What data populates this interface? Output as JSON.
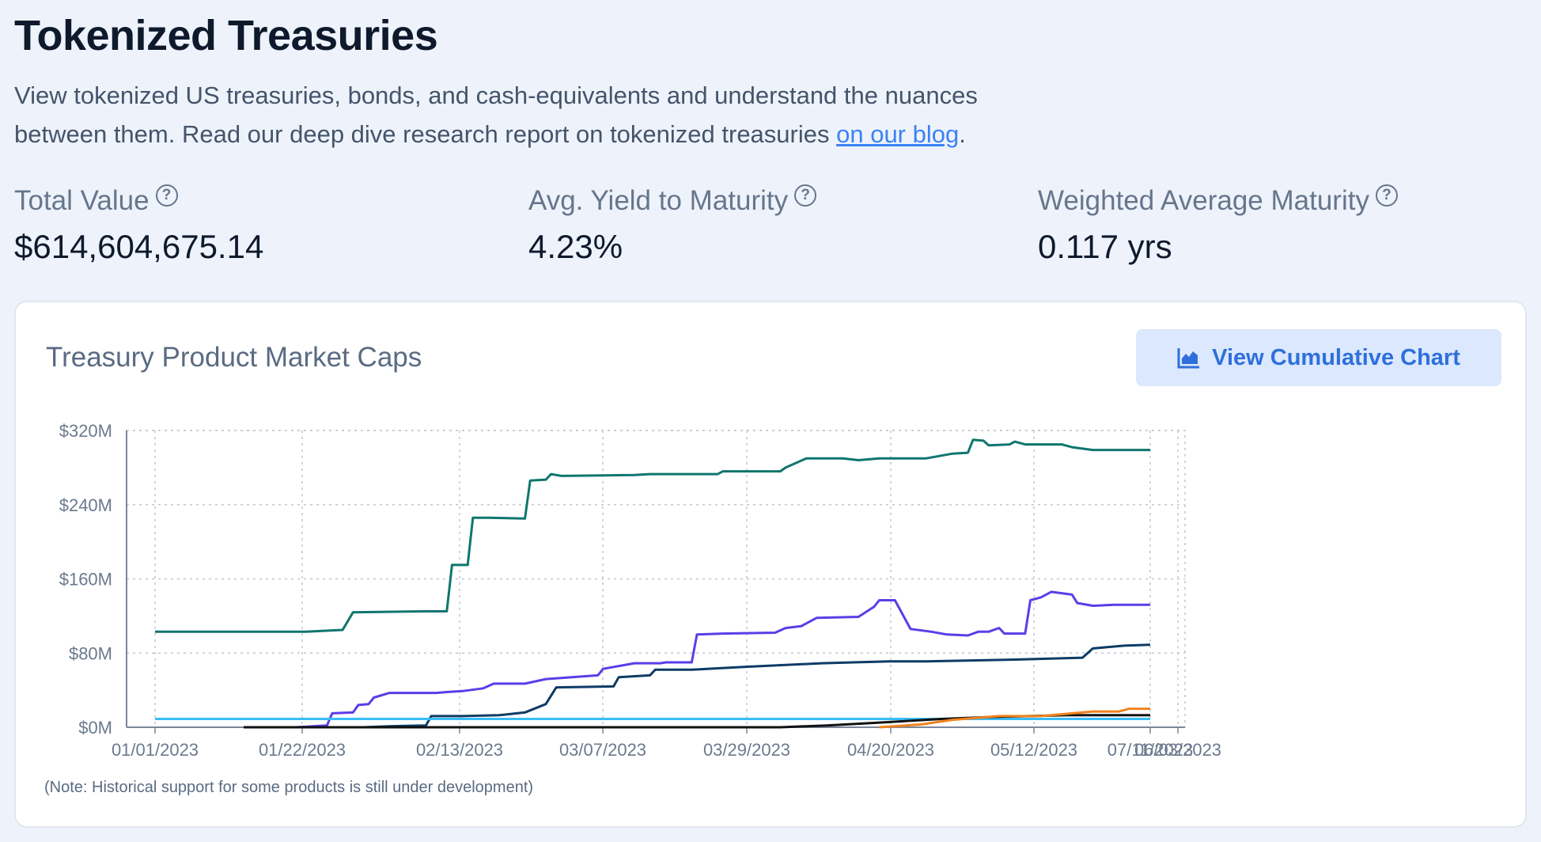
{
  "page": {
    "title": "Tokenized Treasuries",
    "intro_text": "View tokenized US treasuries, bonds, and cash-equivalents and understand the nuances between them. Read our deep dive research report on tokenized treasuries ",
    "intro_link": "on our blog",
    "intro_end": "."
  },
  "stats": [
    {
      "label": "Total Value",
      "value": "$614,604,675.14"
    },
    {
      "label": "Avg. Yield to Maturity",
      "value": "4.23%"
    },
    {
      "label": "Weighted Average Maturity",
      "value": "0.117 yrs"
    }
  ],
  "icons": {
    "help": "question-circle-icon",
    "chart": "area-chart-icon"
  },
  "card": {
    "title": "Treasury Product Market Caps",
    "button_label": "View Cumulative Chart",
    "note": "(Note: Historical support for some products is still under development)"
  },
  "colors": {
    "accent": "#2f6fdb",
    "link": "#3b82f6"
  },
  "chart_data": {
    "type": "line",
    "title": "Treasury Product Market Caps",
    "xlabel": "",
    "ylabel": "",
    "grid": true,
    "legend": "none",
    "x_tick_labels": [
      "01/01/2023",
      "01/22/2023",
      "02/13/2023",
      "03/07/2023",
      "03/29/2023",
      "04/20/2023",
      "05/12/2023",
      "06/03/2023",
      "07/11/2023"
    ],
    "y_tick_labels": [
      "$0M",
      "$80M",
      "$160M",
      "$240M",
      "$320M"
    ],
    "ylim": [
      0,
      320
    ],
    "y_unit": "$M",
    "series": [
      {
        "color": "#0f766e",
        "points": [
          [
            "2023-01-01",
            103
          ],
          [
            "2023-01-30",
            103
          ],
          [
            "2023-02-06",
            105
          ],
          [
            "2023-02-08",
            124
          ],
          [
            "2023-02-22",
            125
          ],
          [
            "2023-02-26",
            125
          ],
          [
            "2023-02-27",
            175
          ],
          [
            "2023-03-02",
            175
          ],
          [
            "2023-03-03",
            226
          ],
          [
            "2023-03-06",
            226
          ],
          [
            "2023-03-13",
            225
          ],
          [
            "2023-03-14",
            266
          ],
          [
            "2023-03-17",
            267
          ],
          [
            "2023-03-18",
            273
          ],
          [
            "2023-03-20",
            271
          ],
          [
            "2023-04-03",
            272
          ],
          [
            "2023-04-06",
            273
          ],
          [
            "2023-04-19",
            273
          ],
          [
            "2023-04-20",
            276
          ],
          [
            "2023-04-27",
            276
          ],
          [
            "2023-05-01",
            276
          ],
          [
            "2023-05-02",
            280
          ],
          [
            "2023-05-06",
            290
          ],
          [
            "2023-05-13",
            290
          ],
          [
            "2023-05-16",
            288
          ],
          [
            "2023-05-20",
            290
          ],
          [
            "2023-05-29",
            290
          ],
          [
            "2023-06-03",
            295
          ],
          [
            "2023-06-06",
            296
          ],
          [
            "2023-06-07",
            310
          ],
          [
            "2023-06-09",
            309
          ],
          [
            "2023-06-10",
            304
          ],
          [
            "2023-06-14",
            305
          ],
          [
            "2023-06-15",
            308
          ],
          [
            "2023-06-17",
            305
          ],
          [
            "2023-06-24",
            305
          ],
          [
            "2023-06-26",
            302
          ],
          [
            "2023-06-30",
            299
          ],
          [
            "2023-07-11",
            299
          ]
        ]
      },
      {
        "color": "#5b3de8",
        "points": [
          [
            "2023-01-18",
            0
          ],
          [
            "2023-01-28",
            0
          ],
          [
            "2023-02-03",
            2
          ],
          [
            "2023-02-04",
            15
          ],
          [
            "2023-02-08",
            16
          ],
          [
            "2023-02-09",
            24
          ],
          [
            "2023-02-11",
            25
          ],
          [
            "2023-02-12",
            32
          ],
          [
            "2023-02-15",
            37
          ],
          [
            "2023-02-24",
            37
          ],
          [
            "2023-02-26",
            38
          ],
          [
            "2023-03-01",
            39
          ],
          [
            "2023-03-05",
            42
          ],
          [
            "2023-03-07",
            47
          ],
          [
            "2023-03-13",
            47
          ],
          [
            "2023-03-17",
            52
          ],
          [
            "2023-03-22",
            54
          ],
          [
            "2023-03-27",
            56
          ],
          [
            "2023-03-28",
            63
          ],
          [
            "2023-04-03",
            69
          ],
          [
            "2023-04-08",
            69
          ],
          [
            "2023-04-09",
            70
          ],
          [
            "2023-04-14",
            70
          ],
          [
            "2023-04-15",
            100
          ],
          [
            "2023-04-20",
            101
          ],
          [
            "2023-04-30",
            102
          ],
          [
            "2023-05-02",
            107
          ],
          [
            "2023-05-05",
            109
          ],
          [
            "2023-05-08",
            118
          ],
          [
            "2023-05-16",
            119
          ],
          [
            "2023-05-19",
            130
          ],
          [
            "2023-05-20",
            137
          ],
          [
            "2023-05-23",
            137
          ],
          [
            "2023-05-26",
            106
          ],
          [
            "2023-05-30",
            103
          ],
          [
            "2023-06-02",
            100
          ],
          [
            "2023-06-06",
            99
          ],
          [
            "2023-06-08",
            103
          ],
          [
            "2023-06-10",
            103
          ],
          [
            "2023-06-12",
            107
          ],
          [
            "2023-06-13",
            101
          ],
          [
            "2023-06-17",
            101
          ],
          [
            "2023-06-18",
            137
          ],
          [
            "2023-06-20",
            140
          ],
          [
            "2023-06-22",
            146
          ],
          [
            "2023-06-26",
            143
          ],
          [
            "2023-06-27",
            134
          ],
          [
            "2023-06-30",
            131
          ],
          [
            "2023-07-04",
            132
          ],
          [
            "2023-07-11",
            132
          ]
        ]
      },
      {
        "color": "#0d3b66",
        "points": [
          [
            "2023-01-18",
            0
          ],
          [
            "2023-02-10",
            0
          ],
          [
            "2023-02-15",
            1
          ],
          [
            "2023-02-22",
            2
          ],
          [
            "2023-02-23",
            12
          ],
          [
            "2023-03-01",
            12
          ],
          [
            "2023-03-08",
            13
          ],
          [
            "2023-03-13",
            16
          ],
          [
            "2023-03-17",
            25
          ],
          [
            "2023-03-19",
            43
          ],
          [
            "2023-03-30",
            44
          ],
          [
            "2023-03-31",
            54
          ],
          [
            "2023-04-06",
            56
          ],
          [
            "2023-04-07",
            62
          ],
          [
            "2023-04-14",
            62
          ],
          [
            "2023-04-24",
            65
          ],
          [
            "2023-05-09",
            69
          ],
          [
            "2023-05-15",
            70
          ],
          [
            "2023-05-22",
            71
          ],
          [
            "2023-05-29",
            71
          ],
          [
            "2023-06-15",
            73
          ],
          [
            "2023-06-28",
            75
          ],
          [
            "2023-06-30",
            85
          ],
          [
            "2023-07-06",
            88
          ],
          [
            "2023-07-11",
            89
          ]
        ]
      },
      {
        "color": "#38bdf8",
        "points": [
          [
            "2023-01-01",
            9
          ],
          [
            "2023-07-11",
            9
          ]
        ]
      },
      {
        "color": "#111111",
        "points": [
          [
            "2023-01-18",
            0
          ],
          [
            "2023-05-01",
            0
          ],
          [
            "2023-05-10",
            2
          ],
          [
            "2023-05-20",
            5
          ],
          [
            "2023-06-01",
            9
          ],
          [
            "2023-06-10",
            11
          ],
          [
            "2023-06-25",
            13
          ],
          [
            "2023-07-11",
            13
          ]
        ]
      },
      {
        "color": "#f0821e",
        "points": [
          [
            "2023-05-20",
            0
          ],
          [
            "2023-05-28",
            3
          ],
          [
            "2023-06-03",
            8
          ],
          [
            "2023-06-12",
            12
          ],
          [
            "2023-06-20",
            12
          ],
          [
            "2023-06-30",
            17
          ],
          [
            "2023-07-05",
            17
          ],
          [
            "2023-07-07",
            20
          ],
          [
            "2023-07-11",
            20
          ]
        ]
      }
    ]
  }
}
